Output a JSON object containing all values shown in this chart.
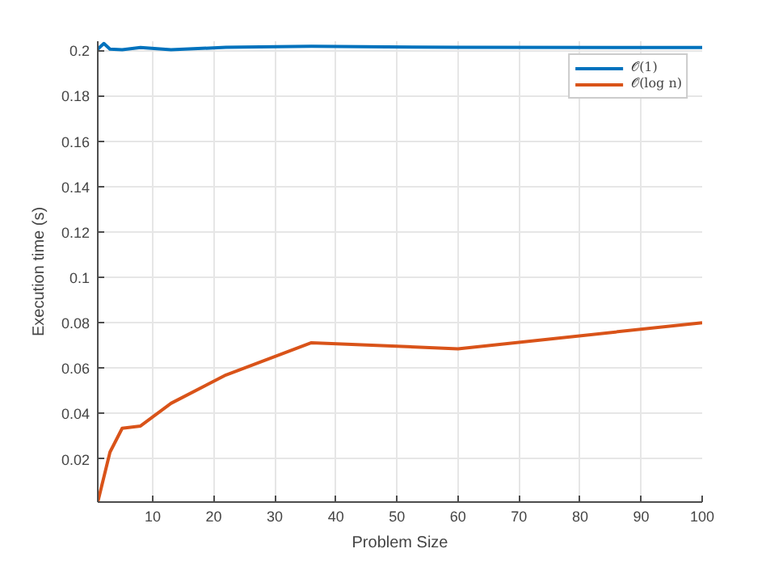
{
  "chart_data": {
    "type": "line",
    "xlabel": "Problem Size",
    "ylabel": "Execution time (s)",
    "series": [
      {
        "name": "𝒪(1)",
        "color": "#0072bd",
        "x": [
          1,
          2,
          3,
          5,
          8,
          13,
          22,
          36,
          60,
          100
        ],
        "values": [
          0.2005,
          0.203,
          0.2005,
          0.2003,
          0.2012,
          0.2003,
          0.2013,
          0.2018,
          0.2013,
          0.2012
        ]
      },
      {
        "name": "𝒪(log n)",
        "color": "#d95319",
        "x": [
          1,
          3,
          5,
          8,
          13,
          22,
          36,
          60,
          100
        ],
        "values": [
          0.001,
          0.023,
          0.0335,
          0.0345,
          0.0445,
          0.057,
          0.0712,
          0.0685,
          0.08
        ]
      }
    ],
    "xlim": [
      1,
      100
    ],
    "ylim": [
      0.001,
      0.204
    ],
    "xticks": [
      10,
      20,
      30,
      40,
      50,
      60,
      70,
      80,
      90,
      100
    ],
    "yticks": [
      0.02,
      0.04,
      0.06,
      0.08,
      0.1,
      0.12,
      0.14,
      0.16,
      0.18,
      0.2
    ],
    "grid": true,
    "legend": "top right",
    "marker": "none",
    "line_style": "solid"
  }
}
